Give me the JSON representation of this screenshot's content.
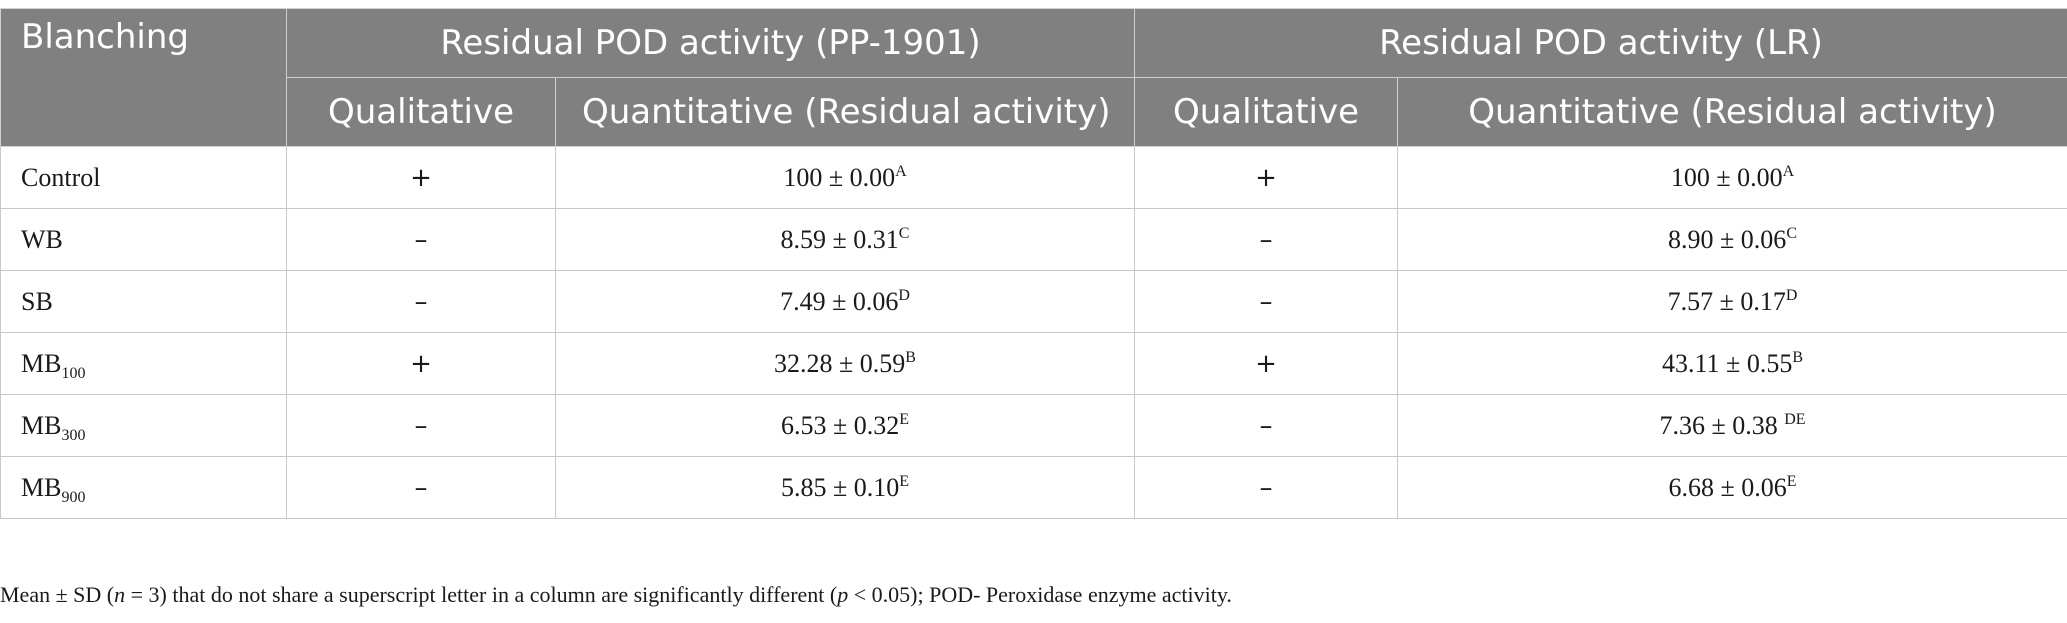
{
  "table": {
    "headers": {
      "corner": "Blanching",
      "groups": [
        "Residual POD activity (PP-1901)",
        "Residual POD activity (LR)"
      ],
      "sub": [
        "Qualitative",
        "Quantitative (Residual activity)",
        "Qualitative",
        "Quantitative (Residual activity)"
      ]
    },
    "rows": [
      {
        "name": "Control",
        "name_sub": "",
        "pp_qual": "+",
        "pp_quant": "100 ± 0.00",
        "pp_sup": "A",
        "lr_qual": "+",
        "lr_quant": "100 ± 0.00",
        "lr_sup": "A"
      },
      {
        "name": "WB",
        "name_sub": "",
        "pp_qual": "–",
        "pp_quant": "8.59 ± 0.31",
        "pp_sup": "C",
        "lr_qual": "–",
        "lr_quant": "8.90 ± 0.06",
        "lr_sup": "C"
      },
      {
        "name": "SB",
        "name_sub": "",
        "pp_qual": "–",
        "pp_quant": "7.49 ± 0.06",
        "pp_sup": "D",
        "lr_qual": "–",
        "lr_quant": "7.57 ± 0.17",
        "lr_sup": "D"
      },
      {
        "name": "MB",
        "name_sub": "100",
        "pp_qual": "+",
        "pp_quant": "32.28 ± 0.59",
        "pp_sup": "B",
        "lr_qual": "+",
        "lr_quant": "43.11 ± 0.55",
        "lr_sup": "B"
      },
      {
        "name": "MB",
        "name_sub": "300",
        "pp_qual": "–",
        "pp_quant": "6.53 ± 0.32",
        "pp_sup": "E",
        "lr_qual": "–",
        "lr_quant": "7.36 ± 0.38 ",
        "lr_sup": "DE"
      },
      {
        "name": "MB",
        "name_sub": "900",
        "pp_qual": "–",
        "pp_quant": "5.85 ± 0.10",
        "pp_sup": "E",
        "lr_qual": "–",
        "lr_quant": "6.68 ± 0.06",
        "lr_sup": "E"
      }
    ]
  },
  "footnote": {
    "p1": "Mean ± SD (",
    "n": "n",
    "p2": " = 3) that do not share a superscript letter in a column are significantly different (",
    "p": "p",
    "p3": " < 0.05); POD- Peroxidase enzyme activity."
  }
}
